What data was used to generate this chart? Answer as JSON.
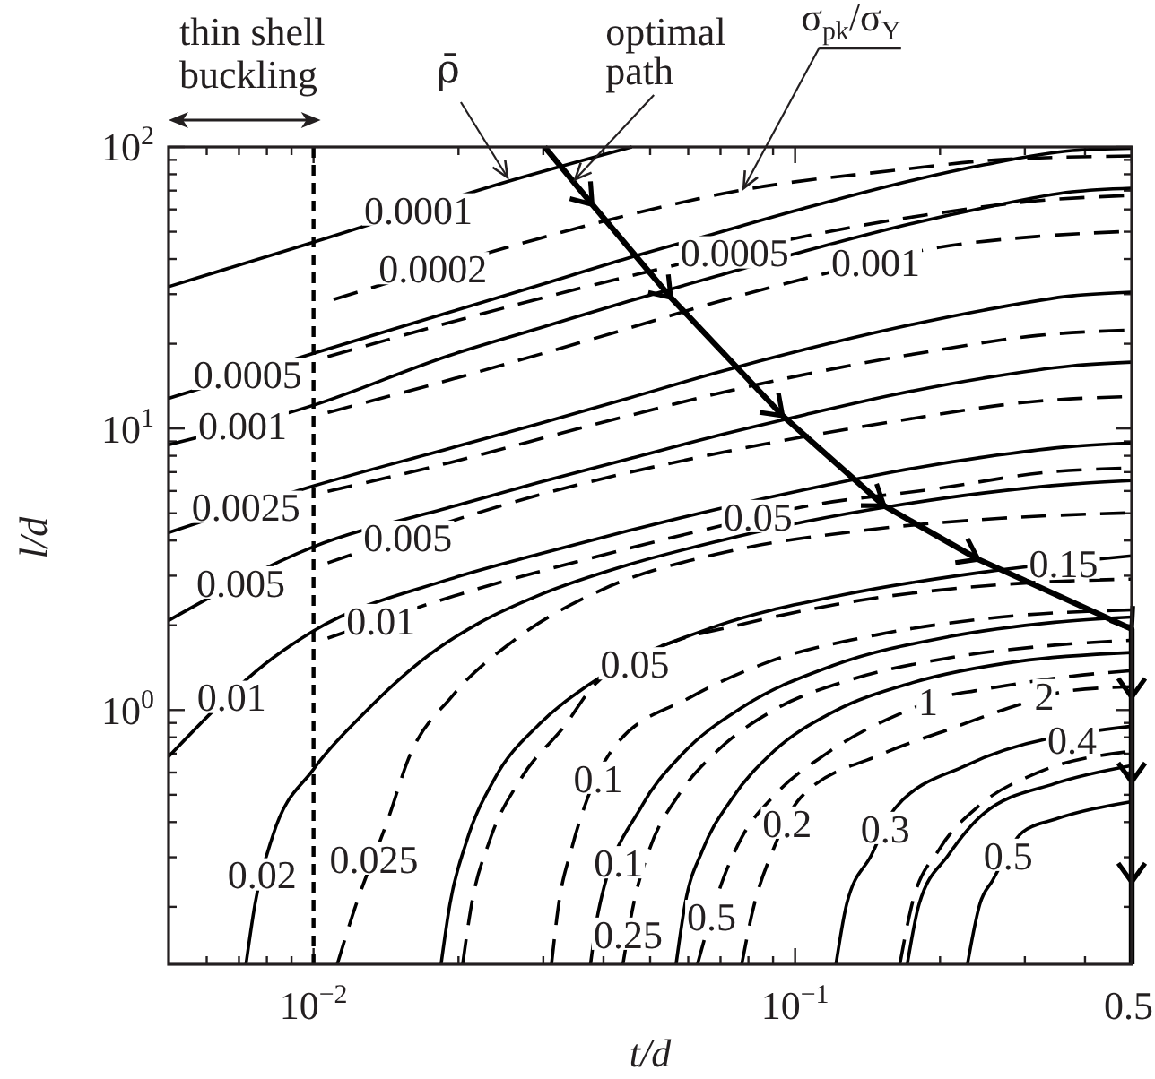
{
  "chart_data": {
    "type": "line",
    "xlabel": "t/d",
    "ylabel": "l/d",
    "log": "xy",
    "xlim": [
      0.005,
      0.5
    ],
    "ylim": [
      0.125,
      100
    ],
    "xticks": [
      {
        "value": 0.006,
        "label": null
      },
      {
        "value": 0.007,
        "label": null
      },
      {
        "value": 0.008,
        "label": null
      },
      {
        "value": 0.009,
        "label": null
      },
      {
        "value": 0.01,
        "label": "10$^{−2}$"
      },
      {
        "value": 0.02,
        "label": null
      },
      {
        "value": 0.03,
        "label": null
      },
      {
        "value": 0.04,
        "label": null
      },
      {
        "value": 0.05,
        "label": null
      },
      {
        "value": 0.06,
        "label": null
      },
      {
        "value": 0.07,
        "label": null
      },
      {
        "value": 0.08,
        "label": null
      },
      {
        "value": 0.09,
        "label": null
      },
      {
        "value": 0.1,
        "label": "10$^{−1}$"
      },
      {
        "value": 0.2,
        "label": null
      },
      {
        "value": 0.3,
        "label": null
      },
      {
        "value": 0.4,
        "label": null
      },
      0.5
    ],
    "yticks": [
      {
        "value": 0.2,
        "label": null
      },
      {
        "value": 0.3,
        "label": null
      },
      {
        "value": 0.4,
        "label": null
      },
      {
        "value": 0.5,
        "label": null
      },
      {
        "value": 0.6,
        "label": null
      },
      {
        "value": 0.7,
        "label": null
      },
      {
        "value": 0.8,
        "label": null
      },
      {
        "value": 0.9,
        "label": null
      },
      {
        "value": 1,
        "label": "10$^{0}$"
      },
      {
        "value": 2,
        "label": null
      },
      {
        "value": 3,
        "label": null
      },
      {
        "value": 4,
        "label": null
      },
      {
        "value": 5,
        "label": null
      },
      {
        "value": 6,
        "label": null
      },
      {
        "value": 7,
        "label": null
      },
      {
        "value": 8,
        "label": null
      },
      {
        "value": 9,
        "label": null
      },
      {
        "value": 10,
        "label": "10$^{1}$"
      },
      {
        "value": 20,
        "label": null
      },
      {
        "value": 30,
        "label": null
      },
      {
        "value": 40,
        "label": null
      },
      {
        "value": 50,
        "label": null
      },
      {
        "value": 60,
        "label": null
      },
      {
        "value": 70,
        "label": null
      },
      {
        "value": 80,
        "label": null
      },
      {
        "value": 90,
        "label": null
      },
      {
        "value": 100,
        "label": "10$^{2}$"
      }
    ],
    "series": [
      {
        "color": "#000000",
        "line_style": "solid",
        "x": [
          0.005,
          0.01,
          0.0255,
          0.0458
        ],
        "values": [
          31.9,
          45.9,
          75.7,
          100
        ]
      },
      {
        "color": "#000000",
        "line_style": "solid",
        "x": [
          0.005,
          0.01,
          0.0192,
          0.0294,
          0.045,
          0.0688,
          0.105,
          0.161,
          0.246,
          0.376,
          0.5
        ],
        "values": [
          12.8,
          18.5,
          25.9,
          32.3,
          40.3,
          49.5,
          60.7,
          73.5,
          86.3,
          97.1,
          99
        ]
      },
      {
        "color": "#000000",
        "line_style": "solid",
        "x": [
          0.005,
          0.01,
          0.0192,
          0.0294,
          0.045,
          0.0688,
          0.105,
          0.161,
          0.246,
          0.376,
          0.5
        ],
        "values": [
          8.76,
          12.1,
          18.2,
          22.7,
          28.3,
          34.8,
          42.7,
          51.7,
          60.7,
          69.3,
          71.4
        ]
      },
      {
        "color": "#000000",
        "line_style": "solid",
        "x": [
          0.005,
          0.01,
          0.0192,
          0.0294,
          0.045,
          0.0688,
          0.105,
          0.161,
          0.246,
          0.376,
          0.5
        ],
        "values": [
          4.27,
          6.25,
          8.51,
          10.4,
          12.8,
          15.8,
          19.1,
          22.7,
          26.3,
          29.6,
          30.5
        ]
      },
      {
        "color": "#000000",
        "line_style": "solid",
        "x": [
          0.005,
          0.01,
          0.0192,
          0.0294,
          0.045,
          0.0688,
          0.105,
          0.161,
          0.246,
          0.376,
          0.5
        ],
        "values": [
          2.08,
          3.8,
          5.25,
          6.44,
          7.79,
          9.43,
          11.2,
          13.2,
          15.1,
          16.7,
          17.2
        ]
      },
      {
        "color": "#000000",
        "line_style": "solid",
        "x": [
          0.005,
          0.00823,
          0.01,
          0.0192,
          0.0294,
          0.045,
          0.0688,
          0.105,
          0.161,
          0.246,
          0.376,
          0.5
        ],
        "values": [
          0.683,
          1.53,
          1.91,
          2.92,
          3.58,
          4.33,
          5.17,
          6.07,
          7.03,
          7.91,
          8.64,
          8.89
        ]
      },
      {
        "color": "#000000",
        "line_style": "solid",
        "x": [
          0.00724,
          0.00756,
          0.00823,
          0.01,
          0.0126,
          0.0167,
          0.0222,
          0.0294,
          0.045,
          0.0688,
          0.105,
          0.161,
          0.246,
          0.376,
          0.5
        ],
        "values": [
          0.125,
          0.205,
          0.358,
          0.616,
          0.957,
          1.49,
          2.05,
          2.56,
          3.28,
          3.97,
          4.67,
          5.32,
          5.9,
          6.35,
          6.53
        ]
      },
      {
        "color": "#000000",
        "line_style": "solid",
        "x": [
          0.0184,
          0.0192,
          0.0208,
          0.0238,
          0.0294,
          0.0373,
          0.0688,
          0.125,
          0.246,
          0.5
        ],
        "values": [
          0.125,
          0.205,
          0.343,
          0.573,
          0.889,
          1.23,
          1.99,
          2.56,
          3.09,
          3.53
        ]
      },
      {
        "color": "#000000",
        "line_style": "solid",
        "x": [
          0.0376,
          0.039,
          0.0482,
          0.0581,
          0.0782,
          0.12,
          0.208,
          0.346,
          0.5
        ],
        "values": [
          0.125,
          0.191,
          0.46,
          0.693,
          1.03,
          1.44,
          1.82,
          2.05,
          2.14
        ]
      },
      {
        "color": "#000000",
        "line_style": "solid",
        "x": [
          0.0566,
          0.0591,
          0.0643,
          0.0737,
          0.0903,
          0.12,
          0.175,
          0.292,
          0.5
        ],
        "values": [
          0.125,
          0.205,
          0.319,
          0.481,
          0.714,
          0.985,
          1.25,
          1.49,
          1.6
        ]
      },
      {
        "color": "#000000",
        "line_style": "solid",
        "x": [
          0.1216,
          0.128,
          0.144,
          0.161,
          0.226,
          0.5
        ],
        "values": [
          0.125,
          0.205,
          0.305,
          0.446,
          0.635,
          0.876
        ]
      },
      {
        "color": "#000000",
        "line_style": "solid",
        "x": [
          0.171,
          0.181,
          0.208,
          0.246,
          0.346,
          0.5
        ],
        "values": [
          0.125,
          0.205,
          0.305,
          0.428,
          0.548,
          0.635
        ]
      },
      {
        "color": "#000000",
        "line_style": "solid",
        "x": [
          0.228,
          0.242,
          0.257,
          0.297,
          0.346,
          0.5
        ],
        "values": [
          0.125,
          0.205,
          0.248,
          0.369,
          0.409,
          0.473
        ]
      },
      {
        "color": "#000000",
        "line_style": "dashed",
        "x": [
          0.011,
          0.0294,
          0.045,
          0.0775,
          0.161,
          0.268,
          0.5
        ],
        "values": [
          28.7,
          47.3,
          57.3,
          70.3,
          82.6,
          90.2,
          92.9
        ]
      },
      {
        "color": "#000000",
        "line_style": "dashed",
        "x": [
          0.0107,
          0.0192,
          0.038,
          0.186,
          0.318,
          0.5
        ],
        "values": [
          18.0,
          23.8,
          32.3,
          57.3,
          64.4,
          67.3
        ]
      },
      {
        "color": "#000000",
        "line_style": "dashed",
        "x": [
          0.0107,
          0.0192,
          0.038,
          0.0743,
          0.11,
          0.199,
          0.318,
          0.5
        ],
        "values": [
          11.4,
          14.9,
          20.8,
          29.2,
          34.8,
          44.0,
          48.1,
          50.2
        ]
      },
      {
        "color": "#000000",
        "line_style": "dashed",
        "x": [
          0.0107,
          0.0192,
          0.038,
          0.0815,
          0.191,
          0.318,
          0.5
        ],
        "values": [
          5.98,
          7.57,
          10.3,
          14.2,
          18.8,
          21.4,
          22.4
        ]
      },
      {
        "color": "#000000",
        "line_style": "dashed",
        "x": [
          0.0107,
          0.0294,
          0.0688,
          0.161,
          0.318,
          0.5
        ],
        "values": [
          3.33,
          5.81,
          8.15,
          10.6,
          12.5,
          13.0
        ]
      },
      {
        "color": "#000000",
        "line_style": "dashed",
        "x": [
          0.0107,
          0.0209,
          0.038,
          0.0659,
          0.107,
          0.191,
          0.346,
          0.5
        ],
        "values": [
          1.8,
          2.63,
          3.48,
          4.4,
          5.32,
          6.07,
          7.03,
          7.24
        ]
      },
      {
        "color": "#000000",
        "line_style": "dashed",
        "x": [
          0.0112,
          0.0121,
          0.0144,
          0.0157,
          0.0194,
          0.0261,
          0.0396,
          0.0718,
          0.136,
          0.268,
          0.5
        ],
        "values": [
          0.125,
          0.191,
          0.427,
          0.663,
          1.12,
          1.77,
          2.67,
          3.64,
          4.33,
          4.8,
          5.02
        ]
      },
      {
        "color": "#000000",
        "line_style": "dashed",
        "x": [
          0.0204,
          0.0213,
          0.0232,
          0.027,
          0.0334,
          0.038,
          0.0571,
          0.0749,
          0.136,
          0.268,
          0.5
        ],
        "values": [
          0.125,
          0.205,
          0.343,
          0.573,
          0.889,
          1.21,
          1.77,
          1.99,
          2.45,
          2.79,
          2.92
        ]
      },
      {
        "color": "#000000",
        "line_style": "dashed",
        "x": [
          0.0312,
          0.0323,
          0.0343,
          0.0364,
          0.042,
          0.0606,
          0.0888,
          0.148,
          0.268,
          0.5
        ],
        "values": [
          0.125,
          0.205,
          0.319,
          0.446,
          0.735,
          1.11,
          1.49,
          1.85,
          2.14,
          2.27
        ]
      },
      {
        "color": "#000000",
        "line_style": "dashed",
        "x": [
          0.0439,
          0.0462,
          0.0498,
          0.0571,
          0.0688,
          0.0903,
          0.13,
          0.208,
          0.346,
          0.5
        ],
        "values": [
          0.125,
          0.205,
          0.319,
          0.495,
          0.714,
          1.0,
          1.28,
          1.53,
          1.7,
          1.77
        ]
      },
      {
        "color": "#000000",
        "line_style": "dashed",
        "x": [
          0.0627,
          0.0712,
          0.0775,
          0.0903,
          0.1165,
          0.172,
          0.2076,
          0.236,
          0.376,
          0.5
        ],
        "values": [
          0.125,
          0.256,
          0.353,
          0.495,
          0.703,
          1.0,
          1.125,
          1.17,
          1.32,
          1.38
        ]
      },
      {
        "color": "#000000",
        "line_style": "dashed",
        "x": [
          0.0775,
          0.0815,
          0.0903,
          0.1026,
          0.15,
          0.2076,
          0.292,
          0.37,
          0.5
        ],
        "values": [
          0.125,
          0.191,
          0.323,
          0.488,
          0.693,
          0.851,
          1.045,
          1.17,
          1.21
        ]
      },
      {
        "color": "#000000",
        "line_style": "dashed",
        "x": [
          0.165,
          0.175,
          0.199,
          0.242,
          0.318,
          0.5
        ],
        "values": [
          0.125,
          0.205,
          0.319,
          0.46,
          0.598,
          0.714
        ]
      },
      {
        "name": "optimal path",
        "color": "#000000",
        "line_style": "solid",
        "x": [
          0.0302,
          0.0379,
          0.0552,
          0.0942,
          0.153,
          0.24,
          0.5,
          0.5,
          0.5,
          0.5,
          0.5
        ],
        "values": [
          100,
          62.5,
          29.2,
          11.1,
          5.32,
          3.43,
          1.94,
          1.11,
          0.556,
          0.245,
          0.125
        ]
      }
    ],
    "ref_lines": [
      {
        "axis": "x",
        "value": 0.01,
        "label": "thin shell buckling",
        "color": "#000000",
        "line_style": "dashed"
      }
    ],
    "annotations": [
      {
        "text": "ρ̄",
        "x": 0.0255,
        "y": 75.7
      },
      {
        "text": "σ$_{pk}$/σ$_{Y}$",
        "x": 0.0775,
        "y": 70.3
      },
      {
        "text": "0.0001",
        "x": 0.0165,
        "y": 59.8
      },
      {
        "text": "0.0002",
        "x": 0.0177,
        "y": 37.0
      },
      {
        "text": "0.0005",
        "x": 0.0073,
        "y": 15.6
      },
      {
        "text": "0.001",
        "x": 0.00712,
        "y": 10.3
      },
      {
        "text": "0.0025",
        "x": 0.00724,
        "y": 5.25
      },
      {
        "text": "0.005",
        "x": 0.00706,
        "y": 2.83
      },
      {
        "text": "0.01",
        "x": 0.00676,
        "y": 1.11
      },
      {
        "text": "0.02",
        "x": 0.00782,
        "y": 0.26
      },
      {
        "text": "0.025",
        "x": 0.01335,
        "y": 0.296
      },
      {
        "text": "0.005",
        "x": 0.0157,
        "y": 4.11
      },
      {
        "text": "0.01",
        "x": 0.0138,
        "y": 2.08
      },
      {
        "text": "0.0005",
        "x": 0.0749,
        "y": 42.1
      },
      {
        "text": "0.001",
        "x": 0.147,
        "y": 39.1
      },
      {
        "text": "0.05",
        "x": 0.0837,
        "y": 4.87
      },
      {
        "text": "0.05",
        "x": 0.0465,
        "y": 1.46
      },
      {
        "text": "0.15",
        "x": 0.361,
        "y": 3.33
      },
      {
        "text": "1",
        "x": 0.189,
        "y": 1.076
      },
      {
        "text": "2",
        "x": 0.329,
        "y": 1.125
      },
      {
        "text": "0.4",
        "x": 0.376,
        "y": 0.785
      },
      {
        "text": "0.1",
        "x": 0.039,
        "y": 0.573
      },
      {
        "text": "0.1",
        "x": 0.043,
        "y": 0.287
      },
      {
        "text": "0.2",
        "x": 0.0963,
        "y": 0.397
      },
      {
        "text": "0.3",
        "x": 0.154,
        "y": 0.38
      },
      {
        "text": "0.5",
        "x": 0.277,
        "y": 0.305
      },
      {
        "text": "0.5",
        "x": 0.0671,
        "y": 0.185
      },
      {
        "text": "0.25",
        "x": 0.045,
        "y": 0.16
      }
    ]
  }
}
